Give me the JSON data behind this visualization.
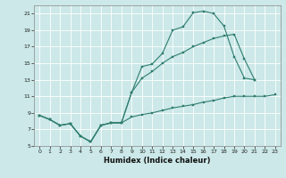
{
  "title": "",
  "xlabel": "Humidex (Indice chaleur)",
  "bg_color": "#cce8e8",
  "grid_color": "#ffffff",
  "line_color": "#2e7d6e",
  "xlim": [
    -0.5,
    23.5
  ],
  "ylim": [
    5,
    22
  ],
  "yticks": [
    5,
    7,
    9,
    11,
    13,
    15,
    17,
    19,
    21
  ],
  "xticks": [
    0,
    1,
    2,
    3,
    4,
    5,
    6,
    7,
    8,
    9,
    10,
    11,
    12,
    13,
    14,
    15,
    16,
    17,
    18,
    19,
    20,
    21,
    22,
    23
  ],
  "line1_x": [
    0,
    1,
    2,
    3,
    4,
    5,
    6,
    7,
    8,
    9,
    10,
    11,
    12,
    13,
    14,
    15,
    16,
    17,
    18,
    19,
    20,
    21
  ],
  "line1_y": [
    8.7,
    8.2,
    7.5,
    7.7,
    6.2,
    5.5,
    7.5,
    7.8,
    7.8,
    11.5,
    14.6,
    14.9,
    16.2,
    19.0,
    19.4,
    21.1,
    21.3,
    21.0,
    19.5,
    15.8,
    13.2,
    13.0
  ],
  "line2_x": [
    0,
    1,
    2,
    3,
    4,
    5,
    6,
    7,
    8,
    9,
    10,
    11,
    12,
    13,
    14,
    15,
    16,
    17,
    18,
    19,
    20,
    21
  ],
  "line2_y": [
    8.7,
    8.2,
    7.5,
    7.7,
    6.2,
    5.5,
    7.5,
    7.8,
    7.8,
    11.5,
    13.2,
    14.0,
    15.0,
    15.8,
    16.3,
    17.0,
    17.5,
    18.0,
    18.3,
    18.5,
    15.5,
    13.0
  ],
  "line3_x": [
    0,
    1,
    2,
    3,
    4,
    5,
    6,
    7,
    8,
    9,
    10,
    11,
    12,
    13,
    14,
    15,
    16,
    17,
    18,
    19,
    20,
    21,
    22,
    23
  ],
  "line3_y": [
    8.7,
    8.2,
    7.5,
    7.7,
    6.2,
    5.5,
    7.5,
    7.8,
    7.8,
    8.5,
    8.8,
    9.0,
    9.3,
    9.6,
    9.8,
    10.0,
    10.3,
    10.5,
    10.8,
    11.0,
    11.0,
    11.0,
    11.0,
    11.2
  ]
}
